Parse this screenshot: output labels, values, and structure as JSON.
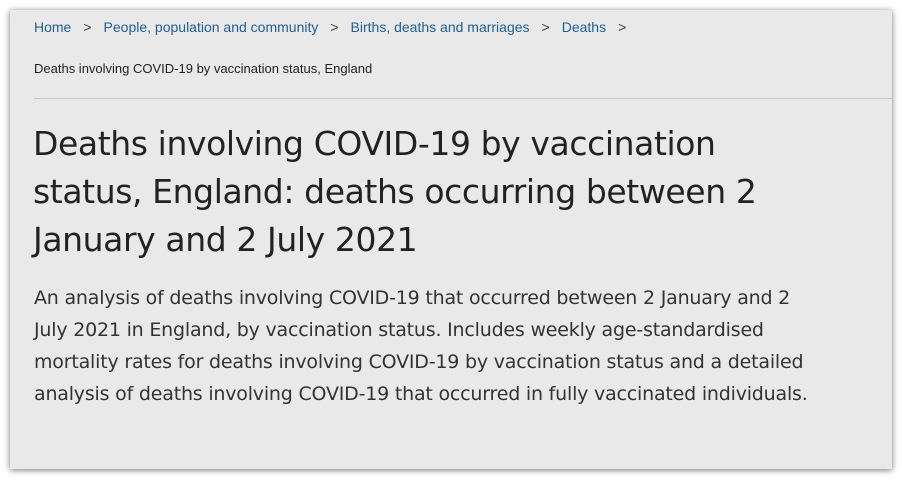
{
  "breadcrumb": {
    "items": [
      {
        "label": "Home"
      },
      {
        "label": "People, population and community"
      },
      {
        "label": "Births, deaths and marriages"
      },
      {
        "label": "Deaths"
      }
    ],
    "separator": ">",
    "current": "Deaths involving COVID-19 by vaccination status, England"
  },
  "page": {
    "title": "Deaths involving COVID-19 by vaccination status, England: deaths occurring between 2 January and 2 July 2021",
    "summary": "An analysis of deaths involving COVID-19 that occurred between 2 January and 2 July 2021 in England, by vaccination status. Includes weekly age-standardised mortality rates for deaths involving COVID-19 by vaccination status and a detailed analysis of deaths involving COVID-19 that occurred in fully vaccinated individuals."
  },
  "colors": {
    "link": "#206095",
    "text": "#222222",
    "background": "#e9e9e9"
  }
}
